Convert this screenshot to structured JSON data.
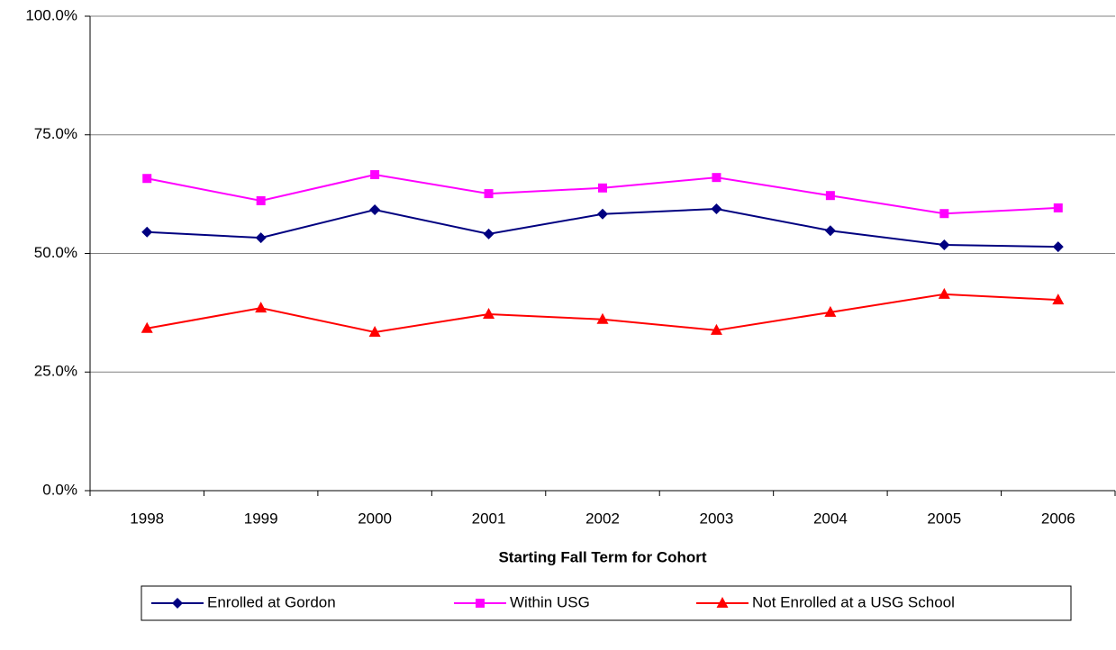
{
  "chart_data": {
    "type": "line",
    "xlabel": "Starting Fall Term for Cohort",
    "categories": [
      "1998",
      "1999",
      "2000",
      "2001",
      "2002",
      "2003",
      "2004",
      "2005",
      "2006"
    ],
    "series": [
      {
        "name": "Enrolled at Gordon",
        "color": "#000080",
        "marker": "diamond",
        "values": [
          54.5,
          53.3,
          59.2,
          54.1,
          58.3,
          59.4,
          54.8,
          51.8,
          51.4
        ]
      },
      {
        "name": "Within USG",
        "color": "#ff00ff",
        "marker": "square",
        "values": [
          65.8,
          61.1,
          66.6,
          62.6,
          63.8,
          66.0,
          62.2,
          58.4,
          59.6
        ]
      },
      {
        "name": "Not Enrolled at a USG School",
        "color": "#ff0000",
        "marker": "triangle",
        "values": [
          34.2,
          38.5,
          33.4,
          37.2,
          36.1,
          33.8,
          37.6,
          41.4,
          40.2
        ]
      }
    ],
    "ylim": [
      0,
      100
    ],
    "yticks": [
      {
        "value": 0,
        "label": "0.0%"
      },
      {
        "value": 25,
        "label": "25.0%"
      },
      {
        "value": 50,
        "label": "50.0%"
      },
      {
        "value": 75,
        "label": "75.0%"
      },
      {
        "value": 100,
        "label": "100.0%"
      }
    ],
    "grid": true,
    "legend": "bottom"
  }
}
